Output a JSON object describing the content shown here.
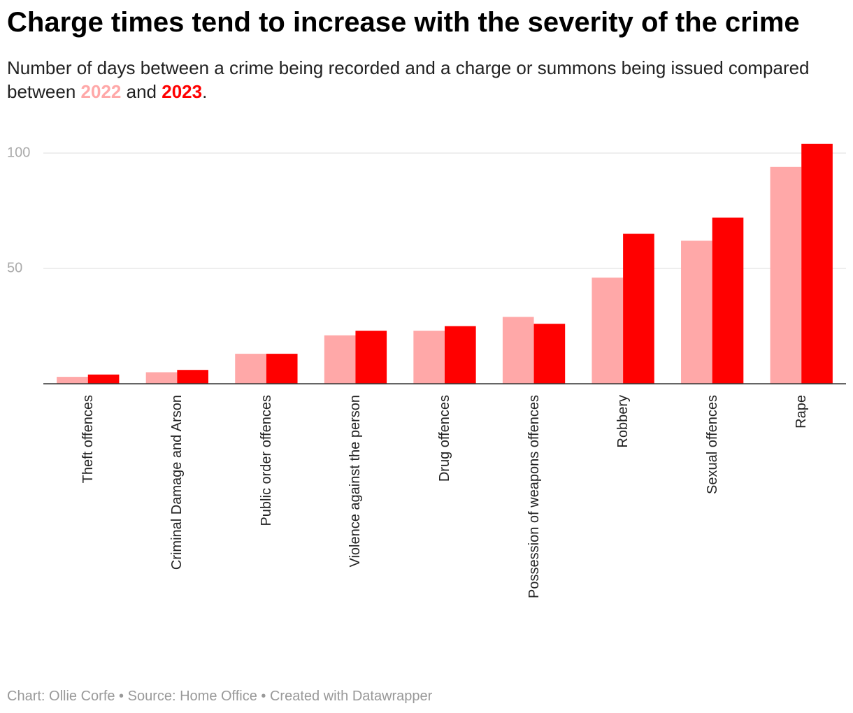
{
  "chart_data": {
    "type": "bar",
    "title": "Charge times tend to increase with the severity of the crime",
    "subtitle": [
      "Number of days between a crime being recorded and a charge or summons being issued compared between",
      "and",
      "."
    ],
    "categories": [
      "Theft offences",
      "Criminal Damage and Arson",
      "Public order offences",
      "Violence against the person",
      "Drug offences",
      "Possession of weapons offences",
      "Robbery",
      "Sexual offences",
      "Rape"
    ],
    "series": [
      {
        "name": "2022",
        "color": "#ffa8a8",
        "values": [
          3,
          5,
          13,
          21,
          23,
          29,
          46,
          62,
          94
        ]
      },
      {
        "name": "2023",
        "color": "#ff0000",
        "values": [
          4,
          6,
          13,
          23,
          25,
          26,
          65,
          72,
          104
        ]
      }
    ],
    "ylim": [
      0,
      105
    ],
    "yticks": [
      50,
      100
    ],
    "grid": true,
    "source": "Chart: Ollie Corfe • Source: Home Office • Created with Datawrapper"
  }
}
